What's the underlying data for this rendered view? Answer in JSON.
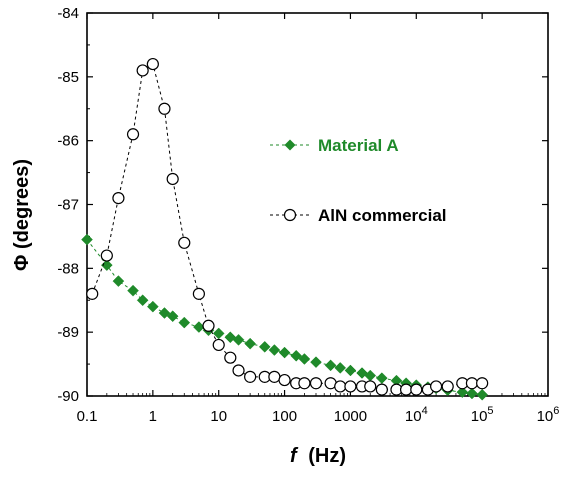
{
  "chart_data": {
    "type": "scatter",
    "xlabel": "f (Hz)",
    "xlabel_symbol": "f",
    "xlabel_unit": "(Hz)",
    "ylabel": "Φ (degrees)",
    "xscale": "log",
    "xlim": [
      0.1,
      1000000
    ],
    "ylim": [
      -90,
      -84
    ],
    "grid": false,
    "legend_placement": "right-center",
    "x_tick_labels": [
      {
        "base": "0.1"
      },
      {
        "base": "1"
      },
      {
        "base": "10"
      },
      {
        "base": "100"
      },
      {
        "base": "1000"
      },
      {
        "base": "10",
        "exp": "4"
      },
      {
        "base": "10",
        "exp": "5"
      },
      {
        "base": "10",
        "exp": "6"
      }
    ],
    "y_tick_labels": [
      "-84",
      "-85",
      "-86",
      "-87",
      "-88",
      "-89",
      "-90"
    ],
    "y_tick_values": [
      -84,
      -85,
      -86,
      -87,
      -88,
      -89,
      -90
    ],
    "x_tick_values": [
      0.1,
      1,
      10,
      100,
      1000,
      10000,
      100000,
      1000000
    ],
    "series": [
      {
        "name": "Material A",
        "color": "#1f8a2a",
        "marker": "filled-diamond",
        "line": "dashed",
        "x": [
          0.1,
          0.2,
          0.3,
          0.5,
          0.7,
          1,
          1.5,
          2,
          3,
          5,
          7,
          10,
          15,
          20,
          30,
          50,
          70,
          100,
          150,
          200,
          300,
          500,
          700,
          1000,
          1500,
          2000,
          3000,
          5000,
          7000,
          10000,
          15000,
          20000,
          30000,
          50000,
          70000,
          100000
        ],
        "y": [
          -87.55,
          -87.95,
          -88.2,
          -88.35,
          -88.5,
          -88.6,
          -88.7,
          -88.75,
          -88.85,
          -88.92,
          -88.97,
          -89.02,
          -89.08,
          -89.12,
          -89.18,
          -89.23,
          -89.28,
          -89.32,
          -89.37,
          -89.42,
          -89.47,
          -89.52,
          -89.56,
          -89.6,
          -89.64,
          -89.68,
          -89.72,
          -89.76,
          -89.8,
          -89.83,
          -89.86,
          -89.88,
          -89.91,
          -89.94,
          -89.96,
          -89.98
        ]
      },
      {
        "name": "AlN commercial",
        "color": "#000000",
        "marker": "open-circle",
        "line": "dashed",
        "x": [
          0.12,
          0.2,
          0.3,
          0.5,
          0.7,
          1,
          1.5,
          2,
          3,
          5,
          7,
          10,
          15,
          20,
          30,
          50,
          70,
          100,
          150,
          200,
          300,
          500,
          700,
          1000,
          1500,
          2000,
          3000,
          5000,
          7000,
          10000,
          15000,
          20000,
          30000,
          50000,
          70000,
          100000
        ],
        "y": [
          -88.4,
          -87.8,
          -86.9,
          -85.9,
          -84.9,
          -84.8,
          -85.5,
          -86.6,
          -87.6,
          -88.4,
          -88.9,
          -89.2,
          -89.4,
          -89.6,
          -89.7,
          -89.7,
          -89.7,
          -89.75,
          -89.8,
          -89.8,
          -89.8,
          -89.8,
          -89.85,
          -89.85,
          -89.85,
          -89.85,
          -89.9,
          -89.9,
          -89.9,
          -89.9,
          -89.9,
          -89.85,
          -89.85,
          -89.8,
          -89.8,
          -89.8
        ]
      }
    ]
  }
}
